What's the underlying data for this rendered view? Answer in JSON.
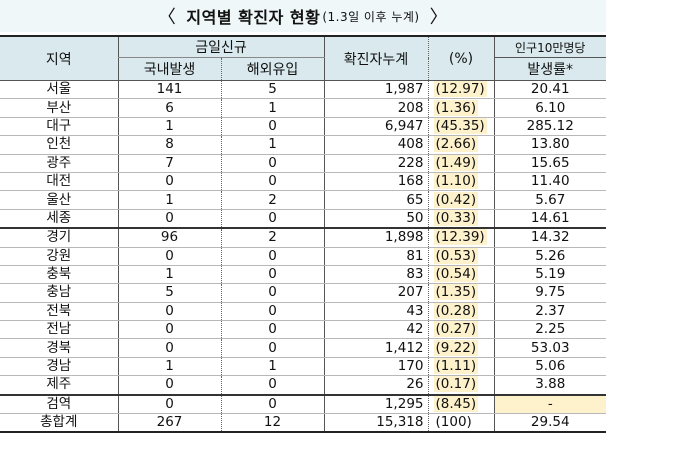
{
  "title": {
    "open": "〈",
    "main": "지역별 확진자 현황",
    "sub": "(1.3일 이후 누계)",
    "close": "〉"
  },
  "header": {
    "region": "지역",
    "new_cases": "금일신규",
    "domestic": "국내발생",
    "overseas": "해외유입",
    "cumulative": "확진자누계",
    "percent": "(%)",
    "per100k_top": "인구10만명당",
    "per100k_bottom": "발생률*"
  },
  "rows": [
    {
      "region": "서울",
      "domestic": "141",
      "overseas": "5",
      "cumulative": "1,987",
      "percent": "(12.97)",
      "rate": "20.41"
    },
    {
      "region": "부산",
      "domestic": "6",
      "overseas": "1",
      "cumulative": "208",
      "percent": "(1.36)",
      "rate": "6.10"
    },
    {
      "region": "대구",
      "domestic": "1",
      "overseas": "0",
      "cumulative": "6,947",
      "percent": "(45.35)",
      "rate": "285.12"
    },
    {
      "region": "인천",
      "domestic": "8",
      "overseas": "1",
      "cumulative": "408",
      "percent": "(2.66)",
      "rate": "13.80"
    },
    {
      "region": "광주",
      "domestic": "7",
      "overseas": "0",
      "cumulative": "228",
      "percent": "(1.49)",
      "rate": "15.65"
    },
    {
      "region": "대전",
      "domestic": "0",
      "overseas": "0",
      "cumulative": "168",
      "percent": "(1.10)",
      "rate": "11.40"
    },
    {
      "region": "울산",
      "domestic": "1",
      "overseas": "2",
      "cumulative": "65",
      "percent": "(0.42)",
      "rate": "5.67"
    },
    {
      "region": "세종",
      "domestic": "0",
      "overseas": "0",
      "cumulative": "50",
      "percent": "(0.33)",
      "rate": "14.61"
    },
    {
      "region": "경기",
      "domestic": "96",
      "overseas": "2",
      "cumulative": "1,898",
      "percent": "(12.39)",
      "rate": "14.32"
    },
    {
      "region": "강원",
      "domestic": "0",
      "overseas": "0",
      "cumulative": "81",
      "percent": "(0.53)",
      "rate": "5.26"
    },
    {
      "region": "충북",
      "domestic": "1",
      "overseas": "0",
      "cumulative": "83",
      "percent": "(0.54)",
      "rate": "5.19"
    },
    {
      "region": "충남",
      "domestic": "5",
      "overseas": "0",
      "cumulative": "207",
      "percent": "(1.35)",
      "rate": "9.75"
    },
    {
      "region": "전북",
      "domestic": "0",
      "overseas": "0",
      "cumulative": "43",
      "percent": "(0.28)",
      "rate": "2.37"
    },
    {
      "region": "전남",
      "domestic": "0",
      "overseas": "0",
      "cumulative": "42",
      "percent": "(0.27)",
      "rate": "2.25"
    },
    {
      "region": "경북",
      "domestic": "0",
      "overseas": "0",
      "cumulative": "1,412",
      "percent": "(9.22)",
      "rate": "53.03"
    },
    {
      "region": "경남",
      "domestic": "1",
      "overseas": "1",
      "cumulative": "170",
      "percent": "(1.11)",
      "rate": "5.06"
    },
    {
      "region": "제주",
      "domestic": "0",
      "overseas": "0",
      "cumulative": "26",
      "percent": "(0.17)",
      "rate": "3.88"
    },
    {
      "region": "검역",
      "domestic": "0",
      "overseas": "0",
      "cumulative": "1,295",
      "percent": "(8.45)",
      "rate": "-"
    }
  ],
  "total": {
    "region": "총합계",
    "domestic": "267",
    "overseas": "12",
    "cumulative": "15,318",
    "percent": "(100)",
    "rate": "29.54"
  },
  "colors": {
    "header_bg": "#d9e9ee",
    "title_bg": "#f0f7f9",
    "highlight": "#fdf2cc"
  }
}
